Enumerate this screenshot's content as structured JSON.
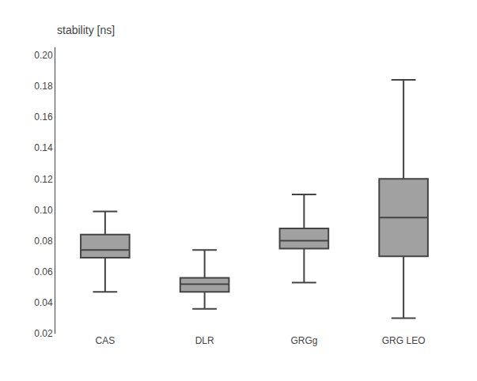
{
  "chart_data": {
    "type": "box",
    "categories": [
      "CAS",
      "DLR",
      "GRGg",
      "GRG LEO"
    ],
    "whisker_low": [
      0.047,
      0.036,
      0.053,
      0.03
    ],
    "q1": [
      0.069,
      0.047,
      0.075,
      0.07
    ],
    "median": [
      0.074,
      0.052,
      0.08,
      0.095
    ],
    "q3": [
      0.084,
      0.056,
      0.088,
      0.12
    ],
    "whisker_high": [
      0.099,
      0.074,
      0.11,
      0.184
    ],
    "ylabel": "stability [ns]",
    "ylim": [
      0.02,
      0.205
    ],
    "yticks": [
      0.02,
      0.04,
      0.06,
      0.08,
      {
        "value": 0.1,
        "label": "0.10"
      },
      0.12,
      0.14,
      0.16,
      0.18,
      {
        "value": 0.2,
        "label": "0.20"
      }
    ],
    "color": "#444444",
    "grid": false
  }
}
